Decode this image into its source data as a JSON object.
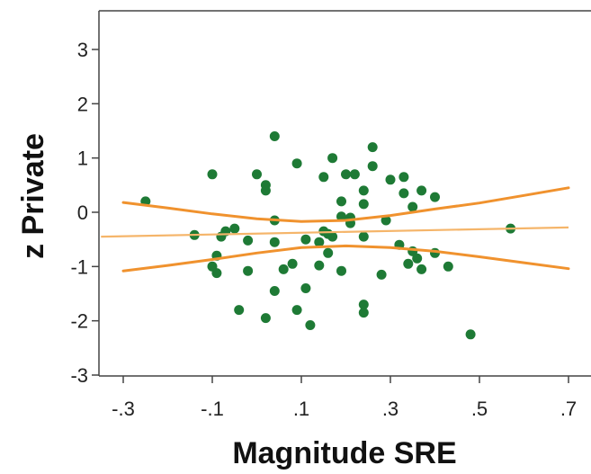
{
  "chart_data": {
    "type": "scatter",
    "xlabel": "Magnitude SRE",
    "ylabel": "z Private",
    "xlim": [
      -0.35,
      0.7
    ],
    "ylim": [
      -3,
      3.6
    ],
    "xticks": [
      -0.3,
      -0.1,
      0.1,
      0.3,
      0.5,
      0.7
    ],
    "xtick_labels": [
      "-.3",
      "-.1",
      ".1",
      ".3",
      ".5",
      ".7"
    ],
    "yticks": [
      -3,
      -2,
      -1,
      0,
      1,
      2,
      3
    ],
    "ytick_labels": [
      "-3",
      "-2",
      "-1",
      "0",
      "1",
      "2",
      "3"
    ],
    "grid": false,
    "colors": {
      "points": "#1e7a35",
      "fit_line": "#f5b56a",
      "ci_band": "#f0922e",
      "frame": "#444444"
    },
    "series": [
      {
        "kind": "points",
        "points": [
          [
            -0.25,
            0.2
          ],
          [
            -0.14,
            -0.42
          ],
          [
            -0.1,
            0.7
          ],
          [
            -0.1,
            -1.0
          ],
          [
            -0.09,
            -1.12
          ],
          [
            -0.09,
            -0.8
          ],
          [
            -0.08,
            -0.45
          ],
          [
            -0.07,
            -0.35
          ],
          [
            -0.05,
            -0.3
          ],
          [
            -0.04,
            -1.8
          ],
          [
            -0.02,
            -0.52
          ],
          [
            -0.02,
            -1.08
          ],
          [
            0.0,
            0.7
          ],
          [
            0.02,
            0.5
          ],
          [
            0.02,
            0.4
          ],
          [
            0.02,
            -1.95
          ],
          [
            0.04,
            1.4
          ],
          [
            0.04,
            -0.15
          ],
          [
            0.04,
            -0.55
          ],
          [
            0.04,
            -1.45
          ],
          [
            0.06,
            -1.05
          ],
          [
            0.08,
            -0.95
          ],
          [
            0.09,
            0.9
          ],
          [
            0.09,
            -1.8
          ],
          [
            0.11,
            -0.5
          ],
          [
            0.11,
            -1.4
          ],
          [
            0.12,
            -2.08
          ],
          [
            0.14,
            -0.55
          ],
          [
            0.14,
            -0.98
          ],
          [
            0.15,
            0.65
          ],
          [
            0.15,
            -0.35
          ],
          [
            0.16,
            -0.4
          ],
          [
            0.16,
            -0.75
          ],
          [
            0.17,
            1.0
          ],
          [
            0.17,
            -0.45
          ],
          [
            0.19,
            0.2
          ],
          [
            0.19,
            -0.08
          ],
          [
            0.19,
            -1.08
          ],
          [
            0.2,
            0.7
          ],
          [
            0.21,
            -0.1
          ],
          [
            0.21,
            -0.2
          ],
          [
            0.22,
            0.7
          ],
          [
            0.24,
            0.4
          ],
          [
            0.24,
            0.15
          ],
          [
            0.24,
            -0.45
          ],
          [
            0.24,
            -1.7
          ],
          [
            0.24,
            -1.85
          ],
          [
            0.26,
            1.2
          ],
          [
            0.26,
            0.85
          ],
          [
            0.28,
            -1.15
          ],
          [
            0.29,
            -0.15
          ],
          [
            0.3,
            0.6
          ],
          [
            0.32,
            -0.6
          ],
          [
            0.33,
            0.65
          ],
          [
            0.33,
            0.35
          ],
          [
            0.34,
            -0.95
          ],
          [
            0.35,
            0.1
          ],
          [
            0.35,
            -0.72
          ],
          [
            0.36,
            -0.85
          ],
          [
            0.37,
            0.4
          ],
          [
            0.37,
            -1.05
          ],
          [
            0.4,
            0.28
          ],
          [
            0.4,
            -0.75
          ],
          [
            0.43,
            -1.0
          ],
          [
            0.48,
            -2.25
          ],
          [
            0.57,
            -0.3
          ]
        ]
      },
      {
        "kind": "fit_line",
        "x": [
          -0.35,
          0.7
        ],
        "y": [
          -0.45,
          -0.28
        ]
      },
      {
        "kind": "ci_upper",
        "x": [
          -0.3,
          -0.2,
          -0.1,
          0.0,
          0.1,
          0.2,
          0.3,
          0.4,
          0.5,
          0.6,
          0.7
        ],
        "y": [
          0.18,
          0.08,
          -0.03,
          -0.12,
          -0.17,
          -0.15,
          -0.06,
          0.06,
          0.17,
          0.31,
          0.45
        ]
      },
      {
        "kind": "ci_lower",
        "x": [
          -0.3,
          -0.2,
          -0.1,
          0.0,
          0.1,
          0.2,
          0.3,
          0.4,
          0.5,
          0.6,
          0.7
        ],
        "y": [
          -1.08,
          -0.98,
          -0.87,
          -0.75,
          -0.65,
          -0.62,
          -0.65,
          -0.72,
          -0.82,
          -0.93,
          -1.04
        ]
      }
    ]
  }
}
